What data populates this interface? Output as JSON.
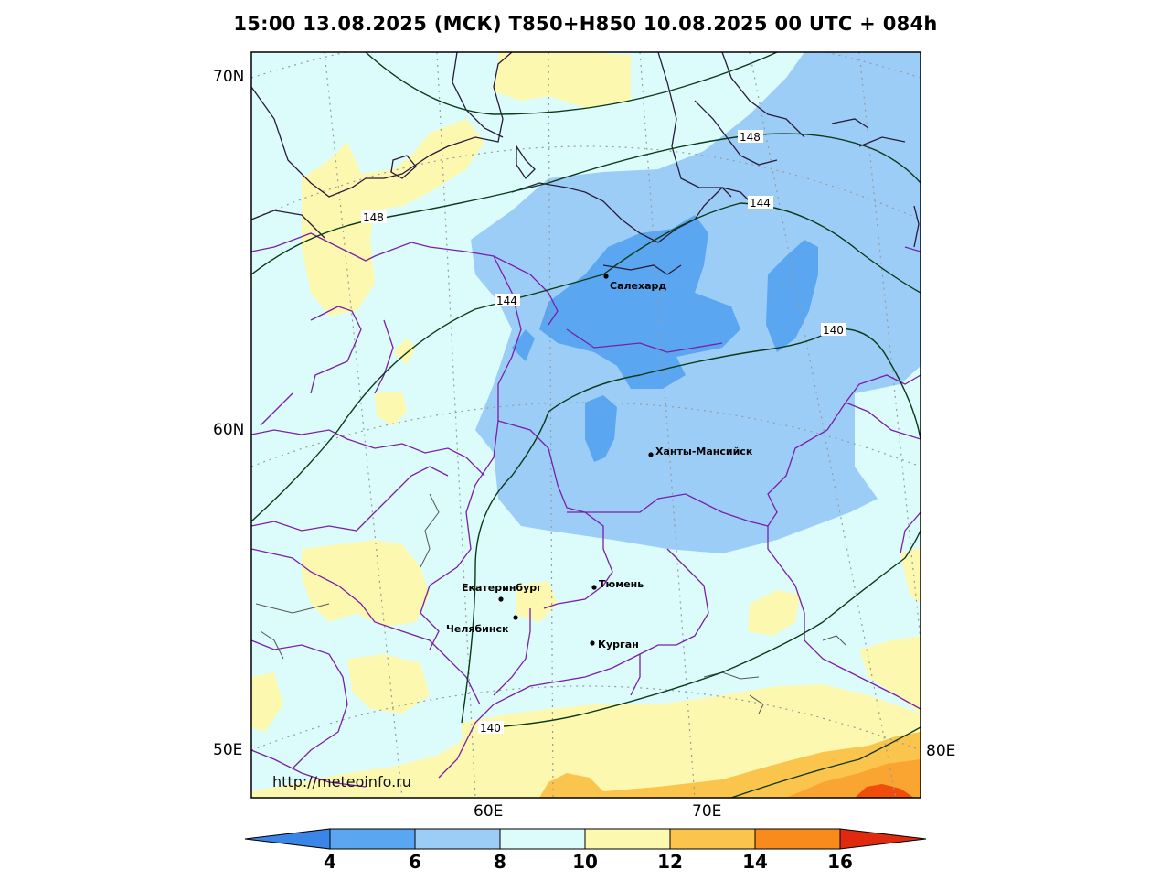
{
  "title": "15:00 13.08.2025 (МСК) T850+H850 10.08.2025 00 UTC + 084h",
  "axes": {
    "lat_labels": [
      "70N",
      "60N",
      "50E"
    ],
    "lon_labels": [
      "60E",
      "70E",
      "80E"
    ]
  },
  "cities": [
    {
      "name": "Салехард",
      "id": "salekhard"
    },
    {
      "name": "Ханты-Мансийск",
      "id": "khanty-mansiysk"
    },
    {
      "name": "Екатеринбург",
      "id": "yekaterinburg"
    },
    {
      "name": "Тюмень",
      "id": "tyumen"
    },
    {
      "name": "Челябинск",
      "id": "chelyabinsk"
    },
    {
      "name": "Курган",
      "id": "kurgan"
    }
  ],
  "contours": {
    "labels": [
      "148",
      "148",
      "144",
      "144",
      "140",
      "140"
    ]
  },
  "colorbar": {
    "ticks": [
      "4",
      "6",
      "8",
      "10",
      "12",
      "14",
      "16"
    ],
    "colors": [
      "#3a86e8",
      "#5aa6f0",
      "#9ccdf7",
      "#dcfcfc",
      "#fdf8b0",
      "#fbc44c",
      "#f98a1c",
      "#f04d0c",
      "#d41e10"
    ]
  },
  "watermark": "http://meteoinfo.ru"
}
